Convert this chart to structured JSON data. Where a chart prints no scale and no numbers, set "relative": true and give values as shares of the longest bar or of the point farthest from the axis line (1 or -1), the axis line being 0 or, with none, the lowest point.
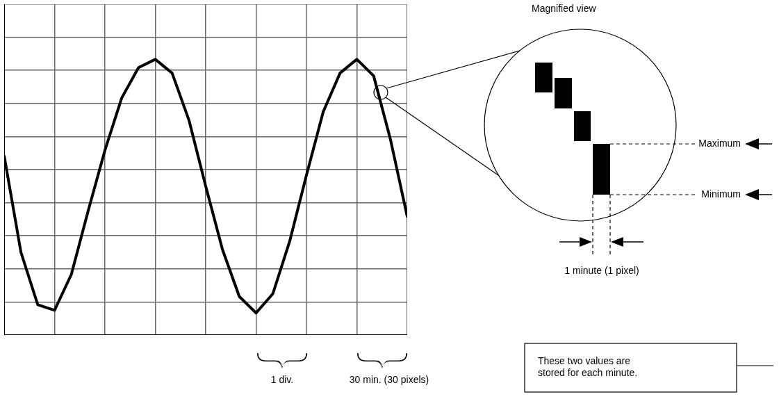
{
  "chart_data": {
    "type": "line",
    "relative": true,
    "grid": true,
    "legend": false,
    "marker": "none",
    "line_style": "solid",
    "categories": [
      null,
      null,
      null,
      null,
      null,
      null,
      null,
      null,
      null,
      null,
      null,
      null,
      null,
      null,
      null,
      null,
      null,
      null,
      null,
      null,
      null,
      null,
      null,
      null,
      null
    ],
    "series": [
      {
        "color": "#000000",
        "values": [
          0.65,
          0.3,
          0.11,
          0.09,
          0.22,
          0.45,
          0.67,
          0.86,
          0.97,
          1,
          0.95,
          0.78,
          0.54,
          0.31,
          0.14,
          0.08,
          0.15,
          0.34,
          0.58,
          0.81,
          0.95,
          1,
          0.94,
          0.71,
          0.43
        ]
      }
    ],
    "annotations": [
      "Magnified view",
      "Maximum",
      "Minimum",
      "1 minute (1 pixel)",
      "These two values are stored for each minute.",
      "1 div.",
      "30 min. (30 pixels)"
    ]
  }
}
